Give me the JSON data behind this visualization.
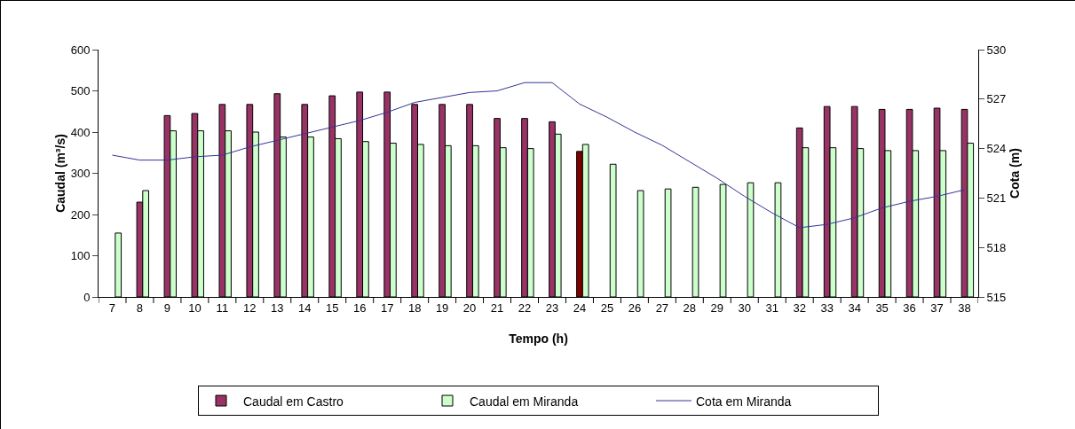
{
  "chart_data": {
    "type": "bar",
    "xlabel": "Tempo (h)",
    "ylabel": "Caudal (m³/s)",
    "y2label": "Cota (m)",
    "categories": [
      "7",
      "8",
      "9",
      "10",
      "11",
      "12",
      "13",
      "14",
      "15",
      "16",
      "17",
      "18",
      "19",
      "20",
      "21",
      "22",
      "23",
      "24",
      "25",
      "26",
      "27",
      "28",
      "29",
      "30",
      "31",
      "32",
      "33",
      "34",
      "35",
      "36",
      "37",
      "38"
    ],
    "series": [
      {
        "name": "Caudal em Castro",
        "color": "#993366",
        "colors": [
          "#993366",
          "#993366",
          "#993366",
          "#993366",
          "#993366",
          "#993366",
          "#993366",
          "#993366",
          "#993366",
          "#993366",
          "#993366",
          "#993366",
          "#993366",
          "#993366",
          "#993366",
          "#993366",
          "#993366",
          "#800000",
          "#993366",
          "#993366",
          "#993366",
          "#993366",
          "#993366",
          "#993366",
          "#993366",
          "#993366",
          "#993366",
          "#993366",
          "#993366",
          "#993366",
          "#993366",
          "#993366"
        ],
        "values": [
          null,
          230,
          440,
          445,
          467,
          467,
          493,
          467,
          488,
          497,
          497,
          467,
          467,
          467,
          433,
          433,
          425,
          353,
          null,
          null,
          null,
          null,
          null,
          null,
          null,
          410,
          462,
          462,
          455,
          455,
          458,
          455
        ]
      },
      {
        "name": "Caudal em Miranda",
        "color": "#ccffcc",
        "values": [
          155,
          258,
          403,
          403,
          403,
          400,
          388,
          388,
          384,
          377,
          373,
          370,
          367,
          367,
          362,
          360,
          395,
          370,
          322,
          258,
          262,
          266,
          273,
          277,
          277,
          362,
          362,
          360,
          355,
          355,
          355,
          373
        ]
      },
      {
        "name": "Cota em Miranda",
        "type": "line",
        "axis": "y2",
        "color": "#333399",
        "values": [
          523.6,
          523.3,
          523.3,
          523.5,
          523.6,
          524.1,
          524.5,
          524.9,
          525.3,
          525.7,
          526.2,
          526.8,
          527.1,
          527.4,
          527.5,
          528.0,
          528.0,
          526.7,
          525.9,
          525.0,
          524.2,
          523.2,
          522.2,
          521.1,
          520.1,
          519.2,
          519.4,
          519.8,
          520.4,
          520.8,
          521.1,
          521.5
        ]
      }
    ],
    "ylim": [
      0,
      600
    ],
    "yticks": [
      0,
      100,
      200,
      300,
      400,
      500,
      600
    ],
    "y2lim": [
      515,
      530
    ],
    "y2ticks": [
      515,
      518,
      521,
      524,
      527,
      530
    ],
    "grid": false,
    "legend": "bottom",
    "marker": "none"
  }
}
